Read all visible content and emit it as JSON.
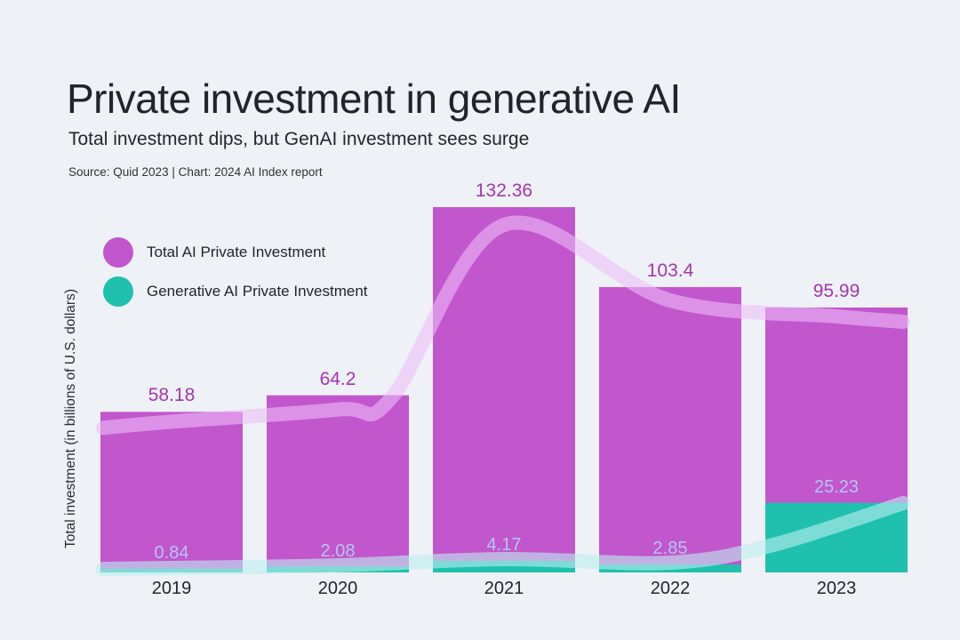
{
  "page": {
    "background": "#eef1f6"
  },
  "header": {
    "title": "Private investment in generative AI",
    "subtitle": "Total investment dips, but GenAI investment sees surge",
    "source": "Source: Quid 2023 | Chart: 2024 AI Index report"
  },
  "legend": {
    "items": [
      {
        "label": "Total AI Private Investment",
        "color": "#c256cd"
      },
      {
        "label": "Generative AI Private Investment",
        "color": "#1fc1ae"
      }
    ]
  },
  "chart_data": {
    "type": "bar",
    "categories": [
      "2019",
      "2020",
      "2021",
      "2022",
      "2023"
    ],
    "series": [
      {
        "name": "Total AI Private Investment",
        "values": [
          58.18,
          64.2,
          132.36,
          103.4,
          95.99
        ],
        "color": "#c256cd",
        "label_color": "#a335b1"
      },
      {
        "name": "Generative AI Private Investment",
        "values": [
          0.84,
          2.08,
          4.17,
          2.85,
          25.23
        ],
        "color": "#1fc1ae",
        "label_color": "#b3c6f0"
      }
    ],
    "title": "Private investment in generative AI",
    "subtitle": "Total investment dips, but GenAI investment sees surge",
    "xlabel": "",
    "ylabel": "Total investment (in billions of U.S. dollars)",
    "ylim": [
      0,
      140
    ],
    "grid": false,
    "legend_position": "upper-left-inside",
    "overlays": {
      "total_trend_line_color": "rgba(237,190,250,0.58)",
      "genai_trend_line_color": "rgba(189,240,240,0.60)"
    },
    "axis_tick_color": "#20252e",
    "background": "#eef1f6"
  }
}
